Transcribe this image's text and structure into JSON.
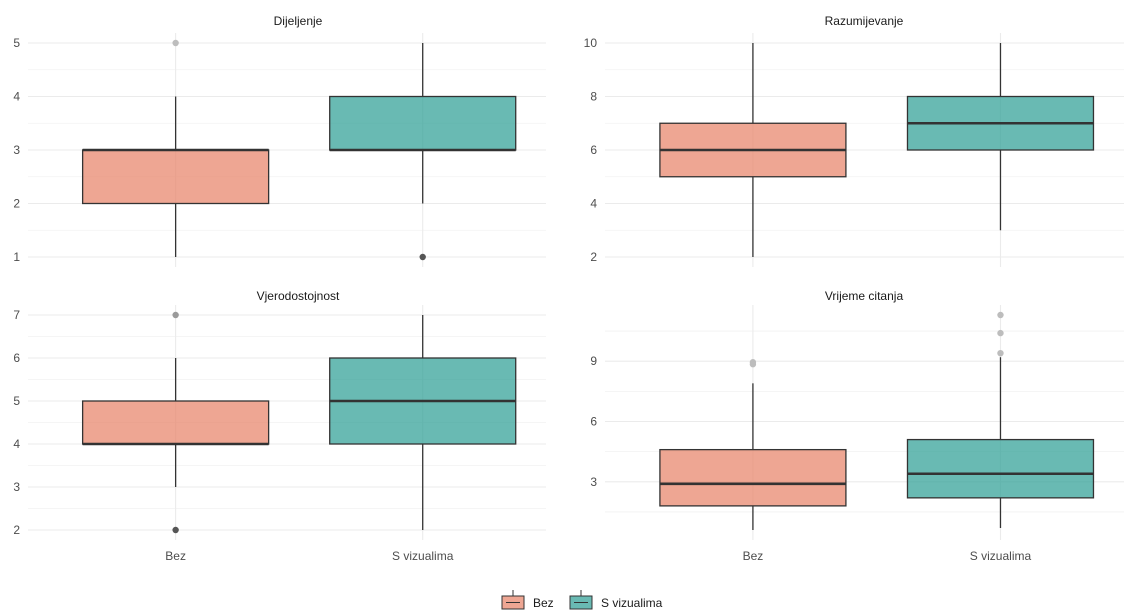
{
  "chart_data": {
    "type": "boxplot",
    "layout": "2x2 facets",
    "categories": [
      "Bez",
      "S vizualima"
    ],
    "colors": {
      "Bez": "#e8836a",
      "S vizualima": "#2fa095",
      "box_border": "#333333",
      "grid": "#ebebeb",
      "outlier_light": "#bdbdbd",
      "outlier_dark": "#555555"
    },
    "legend": {
      "position": "bottom",
      "entries": [
        "Bez",
        "S vizualima"
      ]
    },
    "facets": [
      {
        "title": "Dijeljenje",
        "ylim": [
          1,
          5
        ],
        "yticks": [
          1,
          2,
          3,
          4,
          5
        ],
        "boxes": [
          {
            "group": "Bez",
            "min": 1,
            "q1": 2,
            "median": 3,
            "q3": 3,
            "max": 4,
            "outliers": [
              {
                "y": 5,
                "shade": "light"
              }
            ]
          },
          {
            "group": "S vizualima",
            "min": 2,
            "q1": 3,
            "median": 3,
            "q3": 4,
            "max": 5,
            "outliers": [
              {
                "y": 1,
                "shade": "dark"
              }
            ]
          }
        ]
      },
      {
        "title": "Razumijevanje",
        "ylim": [
          2,
          10
        ],
        "yticks": [
          2,
          4,
          6,
          8,
          10
        ],
        "boxes": [
          {
            "group": "Bez",
            "min": 2,
            "q1": 5,
            "median": 6,
            "q3": 7,
            "max": 10,
            "outliers": []
          },
          {
            "group": "S vizualima",
            "min": 3,
            "q1": 6,
            "median": 7,
            "q3": 8,
            "max": 10,
            "outliers": []
          }
        ]
      },
      {
        "title": "Vjerodostojnost",
        "ylim": [
          2,
          7
        ],
        "yticks": [
          2,
          3,
          4,
          5,
          6,
          7
        ],
        "boxes": [
          {
            "group": "Bez",
            "min": 3,
            "q1": 4,
            "median": 4,
            "q3": 5,
            "max": 6,
            "outliers": [
              {
                "y": 7,
                "shade": "mid"
              },
              {
                "y": 2,
                "shade": "dark"
              }
            ]
          },
          {
            "group": "S vizualima",
            "min": 2,
            "q1": 4,
            "median": 5,
            "q3": 6,
            "max": 7,
            "outliers": []
          }
        ]
      },
      {
        "title": "Vrijeme citanja",
        "ylim": [
          0.6,
          11.3
        ],
        "yticks": [
          3,
          6,
          9
        ],
        "boxes": [
          {
            "group": "Bez",
            "min": 0.6,
            "q1": 1.8,
            "median": 2.9,
            "q3": 4.6,
            "max": 7.9,
            "outliers": [
              {
                "y": 8.95,
                "shade": "light"
              },
              {
                "y": 8.85,
                "shade": "light"
              }
            ]
          },
          {
            "group": "S vizualima",
            "min": 0.7,
            "q1": 2.2,
            "median": 3.4,
            "q3": 5.1,
            "max": 9.2,
            "outliers": [
              {
                "y": 9.4,
                "shade": "light"
              },
              {
                "y": 10.4,
                "shade": "light"
              },
              {
                "y": 11.3,
                "shade": "light"
              }
            ]
          }
        ]
      }
    ]
  }
}
